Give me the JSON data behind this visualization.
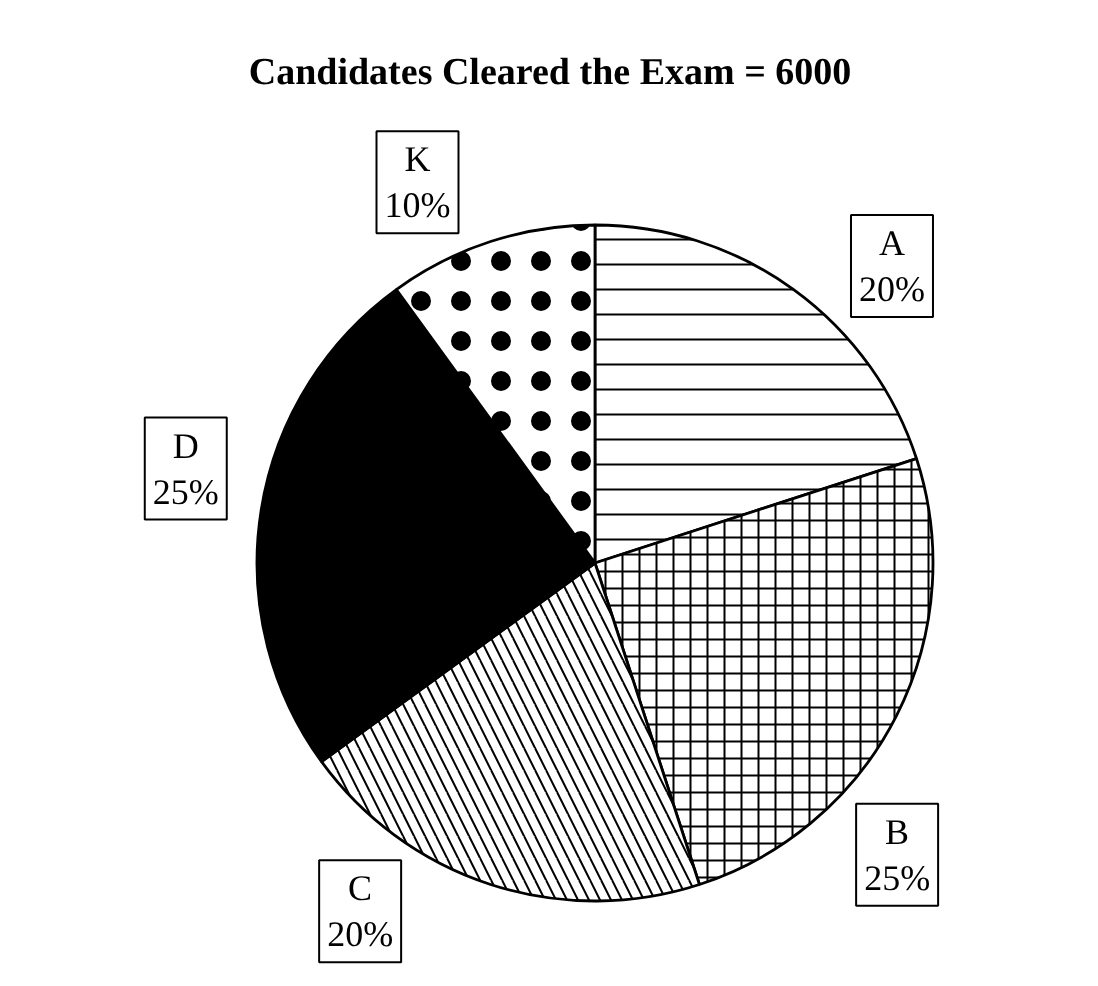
{
  "chart_data": {
    "type": "pie",
    "title": "Candidates Cleared the Exam = 6000",
    "categories": [
      "A",
      "B",
      "C",
      "D",
      "K"
    ],
    "values": [
      20,
      25,
      20,
      25,
      10
    ],
    "colors": [
      "#ffffff",
      "#ffffff",
      "#ffffff",
      "#000000",
      "#ffffff"
    ],
    "value_labels": [
      "20%",
      "25%",
      "20%",
      "25%",
      "10%"
    ]
  }
}
